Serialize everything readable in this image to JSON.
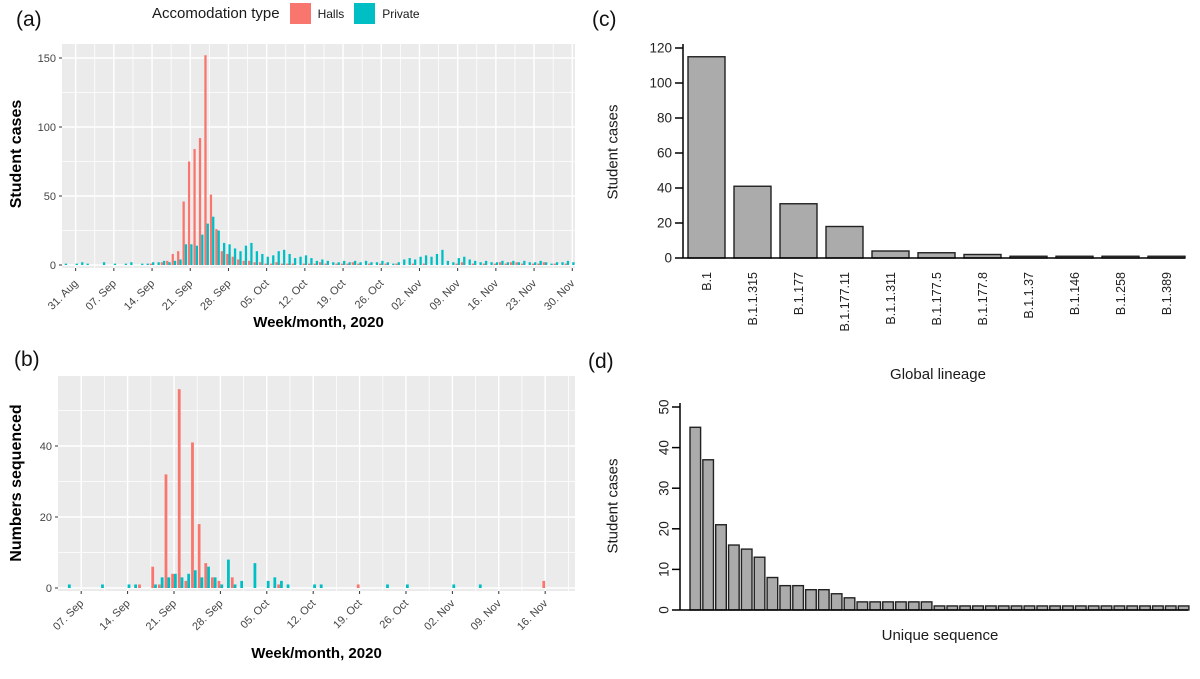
{
  "colors": {
    "halls": "#F8766D",
    "private": "#00BFC4",
    "panel_bg": "#EBEBEB",
    "grid": "#FFFFFF",
    "bar_gray": "#ABABAB",
    "bar_border": "#222222",
    "gg_axis_text": "#454545",
    "base_axis_text": "#222222"
  },
  "legend": {
    "title": "Accomodation type",
    "items": [
      {
        "label": "Halls",
        "color": "#F8766D"
      },
      {
        "label": "Private",
        "color": "#00BFC4"
      }
    ]
  },
  "panels": {
    "a": {
      "letter": "(a)",
      "ylabel": "Student cases",
      "xlabel": "Week/month, 2020"
    },
    "b": {
      "letter": "(b)",
      "ylabel": "Numbers sequenced",
      "xlabel": "Week/month, 2020"
    },
    "c": {
      "letter": "(c)",
      "ylabel": "Student cases",
      "xlabel": "Global lineage"
    },
    "d": {
      "letter": "(d)",
      "ylabel": "Student cases",
      "xlabel": "Unique sequence"
    }
  },
  "chart_data": [
    {
      "panel": "a",
      "type": "bar",
      "mode": "grouped-daily",
      "title": "",
      "xlabel": "Week/month, 2020",
      "ylabel": "Student cases",
      "ylim": [
        0,
        160
      ],
      "yticks": [
        0,
        50,
        100,
        150
      ],
      "grid": true,
      "legend_position": "top",
      "n_days": 94,
      "tick_labels": [
        "31. Aug",
        "07. Sep",
        "14. Sep",
        "21. Sep",
        "28. Sep",
        "05. Oct",
        "12. Oct",
        "19. Oct",
        "26. Oct",
        "02. Nov",
        "09. Nov",
        "16. Nov",
        "23. Nov",
        "30. Nov"
      ],
      "tick_day_index": [
        2,
        9,
        16,
        23,
        30,
        37,
        44,
        51,
        58,
        65,
        72,
        79,
        86,
        93
      ],
      "series": [
        {
          "name": "Halls",
          "color": "#F8766D",
          "values": [
            0,
            0,
            0,
            0,
            0,
            0,
            0,
            0,
            0,
            0,
            0,
            0,
            0,
            0,
            0,
            0,
            1,
            0,
            2,
            3,
            8,
            10,
            46,
            75,
            84,
            92,
            152,
            51,
            26,
            10,
            8,
            6,
            4,
            3,
            3,
            2,
            2,
            1,
            1,
            2,
            1,
            1,
            1,
            0,
            1,
            1,
            1,
            2,
            1,
            0,
            1,
            1,
            1,
            2,
            1,
            0,
            1,
            0,
            1,
            1,
            0,
            1,
            0,
            0,
            1,
            0,
            1,
            0,
            0,
            0,
            0,
            0,
            1,
            2,
            0,
            1,
            0,
            1,
            0,
            1,
            2,
            1,
            2,
            2,
            1,
            0,
            1,
            1,
            2,
            0,
            1,
            0,
            1,
            0
          ]
        },
        {
          "name": "Private",
          "color": "#00BFC4",
          "values": [
            1,
            0,
            1,
            2,
            1,
            0,
            0,
            2,
            0,
            1,
            0,
            1,
            2,
            0,
            1,
            1,
            2,
            2,
            3,
            2,
            3,
            4,
            15,
            15,
            14,
            22,
            30,
            35,
            25,
            16,
            15,
            12,
            10,
            14,
            16,
            10,
            8,
            6,
            7,
            10,
            11,
            8,
            5,
            6,
            7,
            5,
            3,
            4,
            3,
            2,
            2,
            3,
            2,
            3,
            2,
            3,
            2,
            2,
            3,
            2,
            1,
            2,
            4,
            5,
            4,
            6,
            7,
            6,
            8,
            11,
            3,
            2,
            5,
            6,
            4,
            3,
            2,
            3,
            2,
            2,
            3,
            2,
            3,
            2,
            3,
            2,
            2,
            3,
            2,
            1,
            2,
            2,
            3,
            2
          ]
        }
      ]
    },
    {
      "panel": "b",
      "type": "bar",
      "mode": "grouped-daily",
      "title": "",
      "xlabel": "Week/month, 2020",
      "ylabel": "Numbers sequenced",
      "ylim": [
        0,
        60
      ],
      "yticks": [
        0,
        20,
        40
      ],
      "grid": true,
      "n_days": 78,
      "tick_labels": [
        "07. Sep",
        "14. Sep",
        "21. Sep",
        "28. Sep",
        "05. Oct",
        "12. Oct",
        "19. Oct",
        "26. Oct",
        "02. Nov",
        "09. Nov",
        "16. Nov"
      ],
      "tick_day_index": [
        3,
        10,
        17,
        24,
        31,
        38,
        45,
        52,
        59,
        66,
        73
      ],
      "series": [
        {
          "name": "Halls",
          "color": "#F8766D",
          "values": [
            0,
            0,
            0,
            0,
            0,
            0,
            0,
            0,
            0,
            0,
            0,
            0,
            1,
            0,
            6,
            1,
            32,
            4,
            56,
            2,
            41,
            18,
            7,
            3,
            2,
            0,
            3,
            0,
            0,
            0,
            0,
            0,
            0,
            1,
            0,
            0,
            0,
            0,
            0,
            0,
            0,
            0,
            0,
            0,
            0,
            1,
            0,
            0,
            0,
            0,
            0,
            0,
            0,
            0,
            0,
            0,
            0,
            0,
            0,
            0,
            0,
            0,
            0,
            0,
            0,
            0,
            0,
            0,
            0,
            0,
            0,
            0,
            0,
            2,
            0,
            0,
            0,
            0
          ]
        },
        {
          "name": "Private",
          "color": "#00BFC4",
          "values": [
            0,
            1,
            0,
            0,
            0,
            0,
            1,
            0,
            0,
            0,
            1,
            1,
            0,
            0,
            1,
            3,
            3,
            4,
            3,
            4,
            5,
            3,
            6,
            3,
            1,
            8,
            1,
            2,
            0,
            7,
            0,
            2,
            3,
            2,
            1,
            0,
            0,
            0,
            1,
            1,
            0,
            0,
            0,
            0,
            0,
            0,
            0,
            0,
            0,
            1,
            0,
            0,
            1,
            0,
            0,
            0,
            0,
            0,
            0,
            1,
            0,
            0,
            0,
            1,
            0,
            0,
            0,
            0,
            0,
            0,
            0,
            0,
            0,
            0,
            0,
            0,
            0,
            0
          ]
        }
      ]
    },
    {
      "panel": "c",
      "type": "bar",
      "title": "",
      "xlabel": "Global lineage",
      "ylabel": "Student cases",
      "ylim": [
        0,
        120
      ],
      "yticks": [
        0,
        20,
        40,
        60,
        80,
        100,
        120
      ],
      "grid": false,
      "categories": [
        "B.1",
        "B.1.1.315",
        "B.1.177",
        "B.1.177.11",
        "B.1.1.311",
        "B.1.177.5",
        "B.1.177.8",
        "B.1.1.37",
        "B.1.146",
        "B.1.258",
        "B.1.389"
      ],
      "values": [
        115,
        41,
        31,
        18,
        4,
        3,
        2,
        1,
        1,
        1,
        1
      ]
    },
    {
      "panel": "d",
      "type": "bar",
      "title": "",
      "xlabel": "Unique sequence",
      "ylabel": "Student cases",
      "ylim": [
        0,
        50
      ],
      "yticks": [
        0,
        10,
        20,
        30,
        40,
        50
      ],
      "grid": false,
      "categories": [],
      "values": [
        45,
        37,
        21,
        16,
        15,
        13,
        8,
        6,
        6,
        5,
        5,
        4,
        3,
        2,
        2,
        2,
        2,
        2,
        2,
        1,
        1,
        1,
        1,
        1,
        1,
        1,
        1,
        1,
        1,
        1,
        1,
        1,
        1,
        1,
        1,
        1,
        1,
        1,
        1
      ]
    }
  ]
}
